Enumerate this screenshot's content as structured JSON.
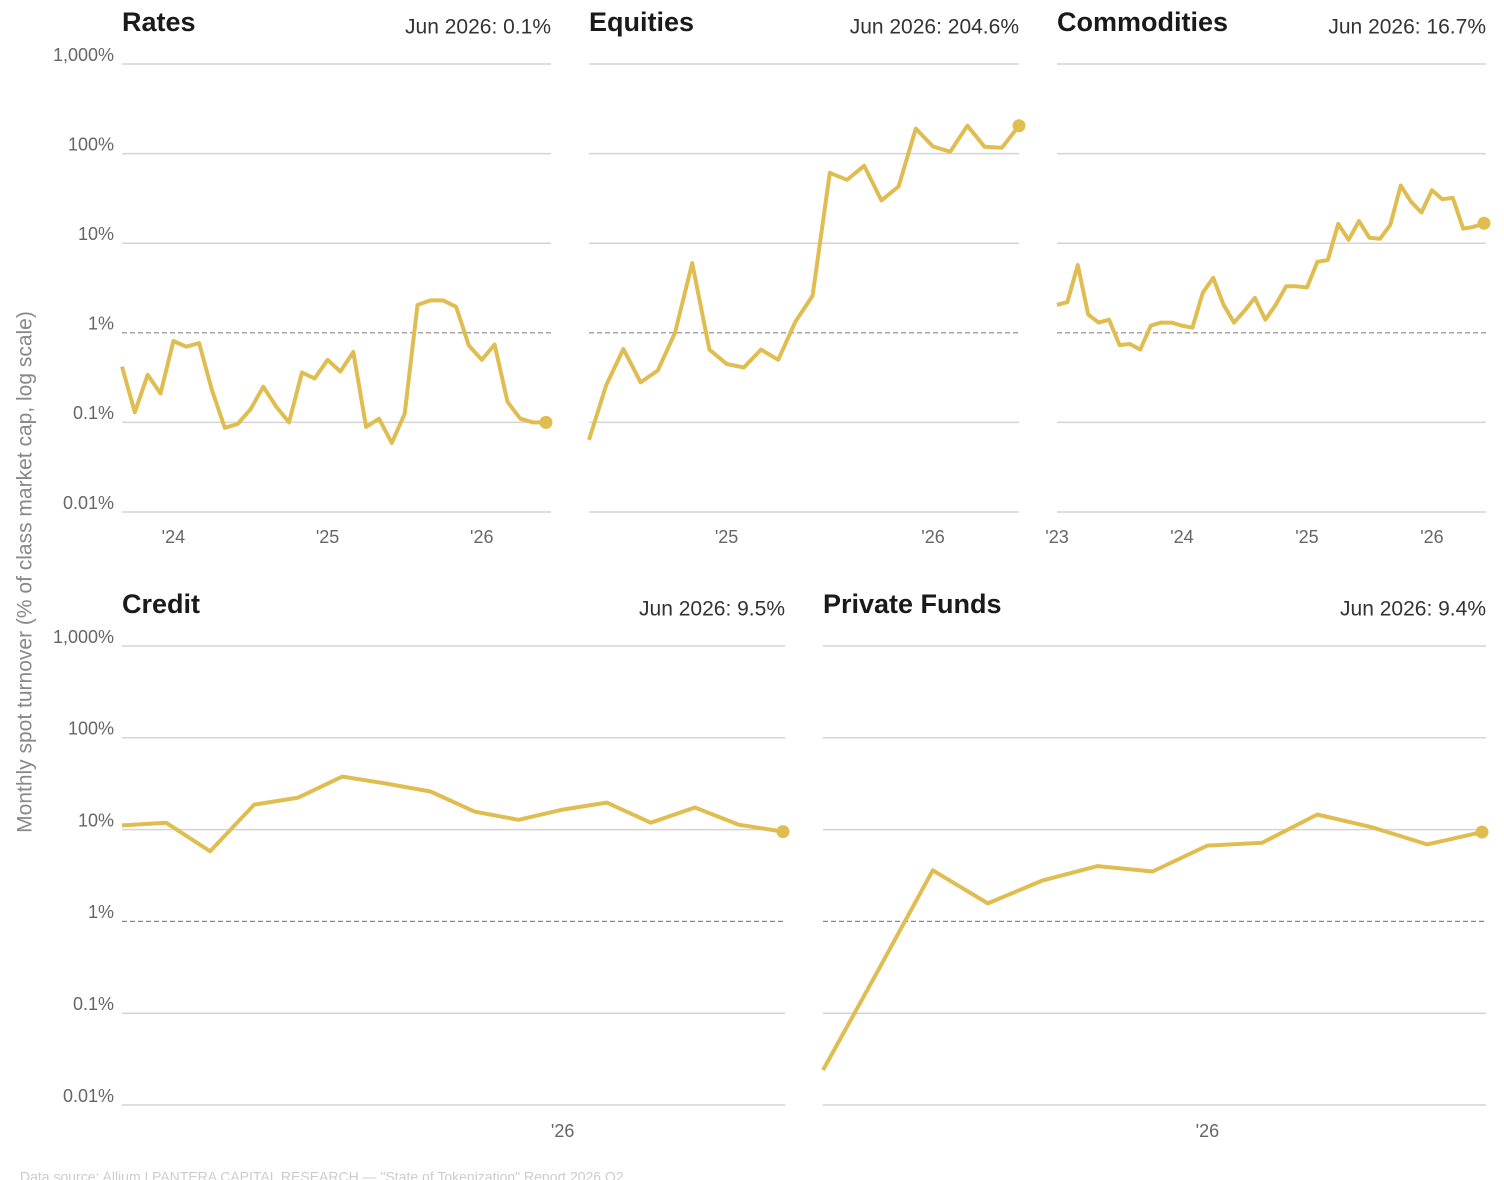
{
  "ylabel": "Monthly spot turnover (% of class market cap, log scale)",
  "source": "Data source: Allium | PANTERA CAPITAL RESEARCH — \"State of Tokenization\" Report 2026 Q2",
  "chart_data": [
    {
      "type": "line",
      "title": "Rates",
      "annotation": "Jun 2026: 0.1%",
      "color": "#e0bd50",
      "log_scale": true,
      "grid": true,
      "reference_line": 1,
      "ytick_labels": true,
      "x": [
        "2023-09",
        "2023-10",
        "2023-11",
        "2023-12",
        "2024-01",
        "2024-02",
        "2024-03",
        "2024-04",
        "2024-05",
        "2024-06",
        "2024-07",
        "2024-08",
        "2024-09",
        "2024-10",
        "2024-11",
        "2024-12",
        "2025-01",
        "2025-02",
        "2025-03",
        "2025-04",
        "2025-05",
        "2025-06",
        "2025-07",
        "2025-08",
        "2025-09",
        "2025-10",
        "2025-11",
        "2025-12",
        "2026-01",
        "2026-02",
        "2026-03",
        "2026-04",
        "2026-05",
        "2026-06"
      ],
      "values": [
        0.42,
        0.13,
        0.34,
        0.21,
        0.81,
        0.7,
        0.77,
        0.23,
        0.087,
        0.096,
        0.14,
        0.25,
        0.15,
        0.1,
        0.36,
        0.31,
        0.5,
        0.37,
        0.61,
        0.089,
        0.11,
        0.059,
        0.125,
        2.05,
        2.3,
        2.3,
        1.95,
        0.72,
        0.5,
        0.74,
        0.17,
        0.11,
        0.1,
        0.1
      ],
      "xlim": [
        "2023-09",
        "2026-06"
      ],
      "xticks": [
        {
          "value": "2024-01",
          "label": "'24"
        },
        {
          "value": "2025-01",
          "label": "'25"
        },
        {
          "value": "2026-01",
          "label": "'26"
        }
      ],
      "ylim": [
        0.01,
        1000
      ],
      "yticks": [
        {
          "value": 0.01,
          "label": "0.01%"
        },
        {
          "value": 0.1,
          "label": "0.1%"
        },
        {
          "value": 1,
          "label": "1%"
        },
        {
          "value": 10,
          "label": "10%"
        },
        {
          "value": 100,
          "label": "100%"
        },
        {
          "value": 1000,
          "label": "1,000%"
        }
      ]
    },
    {
      "type": "line",
      "title": "Equities",
      "annotation": "Jun 2026: 204.6%",
      "color": "#e0bd50",
      "log_scale": true,
      "grid": true,
      "reference_line": 1,
      "ytick_labels": false,
      "x": [
        "2024-05",
        "2024-06",
        "2024-07",
        "2024-08",
        "2024-09",
        "2024-10",
        "2024-11",
        "2024-12",
        "2025-01",
        "2025-02",
        "2025-03",
        "2025-04",
        "2025-05",
        "2025-06",
        "2025-07",
        "2025-08",
        "2025-09",
        "2025-10",
        "2025-11",
        "2025-12",
        "2026-01",
        "2026-02",
        "2026-03",
        "2026-04",
        "2026-05",
        "2026-06"
      ],
      "values": [
        0.064,
        0.26,
        0.66,
        0.28,
        0.38,
        1.0,
        6.0,
        0.65,
        0.45,
        0.41,
        0.65,
        0.5,
        1.33,
        2.6,
        61,
        51,
        73,
        30,
        43,
        190,
        120,
        105,
        205,
        119,
        116,
        204.6
      ],
      "xlim": [
        "2024-05",
        "2026-06"
      ],
      "xticks": [
        {
          "value": "2025-01",
          "label": "'25"
        },
        {
          "value": "2026-01",
          "label": "'26"
        }
      ],
      "ylim": [
        0.01,
        1000
      ],
      "yticks": [
        0.01,
        0.1,
        1,
        10,
        100,
        1000
      ]
    },
    {
      "type": "line",
      "title": "Commodities",
      "annotation": "Jun 2026: 16.7%",
      "color": "#e0bd50",
      "log_scale": true,
      "grid": true,
      "reference_line": 1,
      "ytick_labels": false,
      "x": [
        "2023-01",
        "2023-02",
        "2023-03",
        "2023-04",
        "2023-05",
        "2023-06",
        "2023-07",
        "2023-08",
        "2023-09",
        "2023-10",
        "2023-11",
        "2023-12",
        "2024-01",
        "2024-02",
        "2024-03",
        "2024-04",
        "2024-05",
        "2024-06",
        "2024-07",
        "2024-08",
        "2024-09",
        "2024-10",
        "2024-11",
        "2024-12",
        "2025-01",
        "2025-02",
        "2025-03",
        "2025-04",
        "2025-05",
        "2025-06",
        "2025-07",
        "2025-08",
        "2025-09",
        "2025-10",
        "2025-11",
        "2025-12",
        "2026-01",
        "2026-02",
        "2026-03",
        "2026-04",
        "2026-05",
        "2026-06"
      ],
      "values": [
        2.05,
        2.2,
        5.7,
        1.6,
        1.3,
        1.4,
        0.73,
        0.75,
        0.65,
        1.2,
        1.3,
        1.3,
        1.2,
        1.14,
        2.8,
        4.1,
        2.05,
        1.3,
        1.76,
        2.45,
        1.4,
        2.05,
        3.3,
        3.3,
        3.2,
        6.2,
        6.5,
        16.4,
        10.9,
        17.7,
        11.5,
        11.2,
        16,
        44,
        29,
        22,
        39,
        31,
        32,
        14.5,
        15.2,
        16.7
      ],
      "xlim": [
        "2023-01",
        "2026-06"
      ],
      "xticks": [
        {
          "value": "2023-01",
          "label": "'23"
        },
        {
          "value": "2024-01",
          "label": "'24"
        },
        {
          "value": "2025-01",
          "label": "'25"
        },
        {
          "value": "2026-01",
          "label": "'26"
        }
      ],
      "ylim": [
        0.01,
        1000
      ],
      "yticks": [
        0.01,
        0.1,
        1,
        10,
        100,
        1000
      ]
    },
    {
      "type": "line",
      "title": "Credit",
      "annotation": "Jun 2026: 9.5%",
      "color": "#e0bd50",
      "log_scale": true,
      "grid": true,
      "reference_line": 1,
      "ytick_labels": true,
      "x": [
        "2025-03",
        "2025-04",
        "2025-05",
        "2025-06",
        "2025-07",
        "2025-08",
        "2025-09",
        "2025-10",
        "2025-11",
        "2025-12",
        "2026-01",
        "2026-02",
        "2026-03",
        "2026-04",
        "2026-05",
        "2026-06"
      ],
      "values": [
        11.1,
        11.9,
        5.8,
        18.7,
        22.3,
        37.8,
        31.7,
        26,
        15.7,
        12.8,
        16.5,
        19.7,
        11.9,
        17.4,
        11.3,
        9.5
      ],
      "xlim": [
        "2025-03",
        "2026-06"
      ],
      "xticks": [
        {
          "value": "2026-01",
          "label": "'26"
        }
      ],
      "ylim": [
        0.01,
        1000
      ],
      "yticks": [
        {
          "value": 0.01,
          "label": "0.01%"
        },
        {
          "value": 0.1,
          "label": "0.1%"
        },
        {
          "value": 1,
          "label": "1%"
        },
        {
          "value": 10,
          "label": "10%"
        },
        {
          "value": 100,
          "label": "100%"
        },
        {
          "value": 1000,
          "label": "1,000%"
        }
      ]
    },
    {
      "type": "line",
      "title": "Private Funds",
      "annotation": "Jun 2026: 9.4%",
      "color": "#e0bd50",
      "log_scale": true,
      "grid": true,
      "reference_line": 1,
      "ytick_labels": false,
      "x": [
        "2025-06",
        "2025-07",
        "2025-08",
        "2025-09",
        "2025-10",
        "2025-11",
        "2025-12",
        "2026-01",
        "2026-02",
        "2026-03",
        "2026-04",
        "2026-05",
        "2026-06"
      ],
      "values": [
        0.024,
        0.29,
        3.6,
        1.57,
        2.8,
        4.0,
        3.5,
        6.7,
        7.2,
        14.6,
        10.6,
        6.9,
        9.4
      ],
      "xlim": [
        "2025-06",
        "2026-06"
      ],
      "xticks": [
        {
          "value": "2026-01",
          "label": "'26"
        }
      ],
      "ylim": [
        0.01,
        1000
      ],
      "yticks": [
        0.01,
        0.1,
        1,
        10,
        100,
        1000
      ]
    }
  ]
}
